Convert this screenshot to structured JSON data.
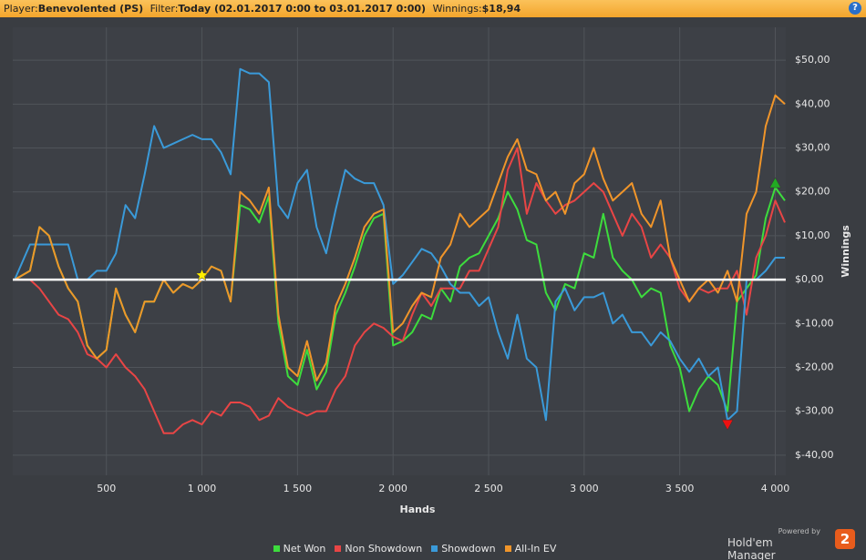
{
  "header": {
    "player_label": "Player:",
    "player": "Benevolented (PS)",
    "filter_label": "Filter:",
    "filter": "Today (02.01.2017 0:00 to 03.01.2017 0:00)",
    "winnings_label": "Winnings:",
    "winnings": "$18,94",
    "help": "?"
  },
  "branding": {
    "powered_by": "Powered by",
    "product": "Hold'em Manager",
    "version": "2"
  },
  "chart_data": {
    "type": "line",
    "x_label": "Hands",
    "y_label": "Winnings",
    "grid": true,
    "xlim": [
      10,
      4055
    ],
    "ylim": [
      -44.6,
      57.5
    ],
    "xticks": [
      {
        "value": 500,
        "label": "500"
      },
      {
        "value": 1000,
        "label": "1 000"
      },
      {
        "value": 1500,
        "label": "1 500"
      },
      {
        "value": 2000,
        "label": "2 000"
      },
      {
        "value": 2500,
        "label": "2 500"
      },
      {
        "value": 3000,
        "label": "3 000"
      },
      {
        "value": 3500,
        "label": "3 500"
      },
      {
        "value": 4000,
        "label": "4 000"
      }
    ],
    "yticks": [
      {
        "value": -40,
        "label": "$-40,00"
      },
      {
        "value": -30,
        "label": "$-30,00"
      },
      {
        "value": -20,
        "label": "$-20,00"
      },
      {
        "value": -10,
        "label": "$-10,00"
      },
      {
        "value": 0,
        "label": "$0,00"
      },
      {
        "value": 10,
        "label": "$10,00"
      },
      {
        "value": 20,
        "label": "$20,00"
      },
      {
        "value": 30,
        "label": "$30,00"
      },
      {
        "value": 40,
        "label": "$40,00"
      },
      {
        "value": 50,
        "label": "$50,00"
      }
    ],
    "x": [
      20,
      100,
      150,
      200,
      250,
      300,
      350,
      400,
      450,
      500,
      550,
      600,
      650,
      700,
      750,
      800,
      850,
      900,
      950,
      1000,
      1050,
      1100,
      1150,
      1200,
      1250,
      1300,
      1350,
      1400,
      1450,
      1500,
      1550,
      1600,
      1650,
      1700,
      1750,
      1800,
      1850,
      1900,
      1950,
      2000,
      2050,
      2100,
      2150,
      2200,
      2250,
      2300,
      2350,
      2400,
      2450,
      2500,
      2550,
      2600,
      2650,
      2700,
      2750,
      2800,
      2850,
      2900,
      2950,
      3000,
      3050,
      3100,
      3150,
      3200,
      3250,
      3300,
      3350,
      3400,
      3450,
      3500,
      3550,
      3600,
      3650,
      3700,
      3750,
      3800,
      3850,
      3900,
      3950,
      4000,
      4050
    ],
    "series": [
      {
        "name": "Net Won",
        "color": "#3ddc3d",
        "values": [
          0,
          2,
          12,
          10,
          3,
          -2,
          -5,
          -15,
          -18,
          -16,
          -2,
          -8,
          -12,
          -5,
          -5,
          0,
          -3,
          -1,
          -2,
          0,
          3,
          2,
          -5,
          17,
          16,
          13,
          19,
          -10,
          -22,
          -24,
          -16,
          -25,
          -21,
          -8,
          -3,
          3,
          10,
          14,
          15,
          -15,
          -14,
          -12,
          -8,
          -9,
          -2,
          -5,
          3,
          5,
          6,
          10,
          14,
          20,
          16,
          9,
          8,
          -3,
          -7,
          -1,
          -2,
          6,
          5,
          15,
          5,
          2,
          0,
          -4,
          -2,
          -3,
          -15,
          -20,
          -30,
          -25,
          -22,
          -24,
          -30,
          -5,
          -2,
          1,
          14,
          21,
          18
        ]
      },
      {
        "name": "Non Showdown",
        "color": "#e84545",
        "values": [
          0,
          0,
          -2,
          -5,
          -8,
          -9,
          -12,
          -17,
          -18,
          -20,
          -17,
          -20,
          -22,
          -25,
          -30,
          -35,
          -35,
          -33,
          -32,
          -33,
          -30,
          -31,
          -28,
          -28,
          -29,
          -32,
          -31,
          -27,
          -29,
          -30,
          -31,
          -30,
          -30,
          -25,
          -22,
          -15,
          -12,
          -10,
          -11,
          -13,
          -14,
          -8,
          -3,
          -6,
          -2,
          -2,
          -2,
          2,
          2,
          7,
          12,
          25,
          30,
          15,
          22,
          18,
          15,
          17,
          18,
          20,
          22,
          20,
          15,
          10,
          15,
          12,
          5,
          8,
          5,
          -2,
          -5,
          -2,
          -3,
          -2,
          -2,
          2,
          -8,
          5,
          10,
          18,
          13
        ]
      },
      {
        "name": "Showdown",
        "color": "#3a9ad9",
        "values": [
          0,
          8,
          8,
          8,
          8,
          8,
          0,
          0,
          2,
          2,
          6,
          17,
          14,
          24,
          35,
          30,
          31,
          32,
          33,
          32,
          32,
          29,
          24,
          48,
          47,
          47,
          45,
          17,
          14,
          22,
          25,
          12,
          6,
          16,
          25,
          23,
          22,
          22,
          17,
          -1,
          1,
          4,
          7,
          6,
          3,
          -1,
          -3,
          -3,
          -6,
          -4,
          -12,
          -18,
          -8,
          -18,
          -20,
          -32,
          -5,
          -2,
          -7,
          -4,
          -4,
          -3,
          -10,
          -8,
          -12,
          -12,
          -15,
          -12,
          -14,
          -18,
          -21,
          -18,
          -22,
          -20,
          -32,
          -30,
          0,
          0,
          2,
          5,
          5
        ]
      },
      {
        "name": "All-In EV",
        "color": "#f0952a",
        "values": [
          0,
          2,
          12,
          10,
          3,
          -2,
          -5,
          -15,
          -18,
          -16,
          -2,
          -8,
          -12,
          -5,
          -5,
          0,
          -3,
          -1,
          -2,
          0,
          3,
          2,
          -5,
          20,
          18,
          15,
          21,
          -8,
          -20,
          -22,
          -14,
          -23,
          -19,
          -6,
          -1,
          5,
          12,
          15,
          16,
          -12,
          -10,
          -6,
          -3,
          -4,
          5,
          8,
          15,
          12,
          14,
          16,
          22,
          28,
          32,
          25,
          24,
          18,
          20,
          15,
          22,
          24,
          30,
          23,
          18,
          20,
          22,
          15,
          12,
          18,
          5,
          0,
          -5,
          -2,
          0,
          -3,
          2,
          -5,
          15,
          20,
          35,
          42,
          40
        ]
      }
    ],
    "markers": [
      {
        "x": 1000,
        "y": 1,
        "color": "#ffee00",
        "shape": "star"
      },
      {
        "x": 4000,
        "y": 22,
        "color": "#22aa22",
        "shape": "up"
      },
      {
        "x": 3750,
        "y": -33,
        "color": "#ee1111",
        "shape": "down"
      }
    ]
  }
}
